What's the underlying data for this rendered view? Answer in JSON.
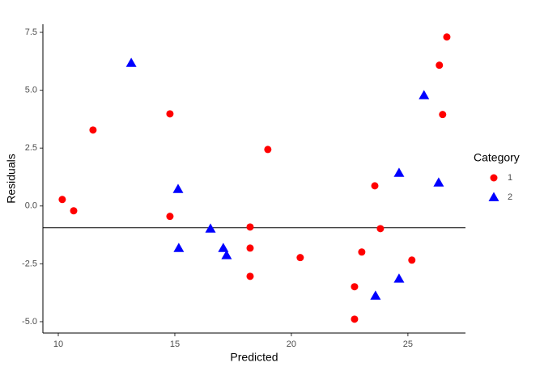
{
  "chart_data": {
    "type": "scatter",
    "x_label": "Predicted",
    "y_label": "Residuals",
    "legend_title": "Category",
    "legend_position": "right",
    "xlim": [
      9.34,
      27.47
    ],
    "xticks": [
      10,
      15,
      20,
      25
    ],
    "ylim": [
      -5.49,
      7.85
    ],
    "yticks": [
      {
        "value": -5,
        "label": "-5.0"
      },
      -2.5,
      {
        "value": 0,
        "label": "0.0"
      },
      {
        "value": 2.5,
        "label": "2.5"
      },
      {
        "value": 5,
        "label": "5.0"
      },
      7.5
    ],
    "hline": -0.94,
    "series": [
      {
        "name": "1",
        "color": "#ff0000",
        "shape": "circle",
        "x": [
          10.17,
          10.66,
          11.49,
          14.79,
          14.79,
          18.23,
          18.23,
          18.23,
          18.99,
          20.38,
          22.71,
          22.71,
          23.02,
          23.58,
          23.82,
          25.17,
          26.35,
          26.49,
          26.67
        ],
        "values": [
          0.28,
          -0.21,
          3.28,
          3.98,
          -0.45,
          -0.91,
          -1.82,
          -3.04,
          2.44,
          -2.23,
          -3.49,
          -4.89,
          -1.99,
          0.87,
          -0.98,
          -2.34,
          6.08,
          3.95,
          7.3
        ]
      },
      {
        "name": "2",
        "color": "#0000ff",
        "shape": "triangle",
        "x": [
          13.13,
          15.14,
          15.17,
          16.53,
          17.08,
          17.22,
          23.61,
          24.62,
          24.62,
          25.69,
          26.32
        ],
        "values": [
          6.18,
          0.73,
          -1.82,
          -0.98,
          -1.82,
          -2.13,
          -3.88,
          1.43,
          -3.14,
          4.78,
          1.01
        ]
      }
    ]
  }
}
